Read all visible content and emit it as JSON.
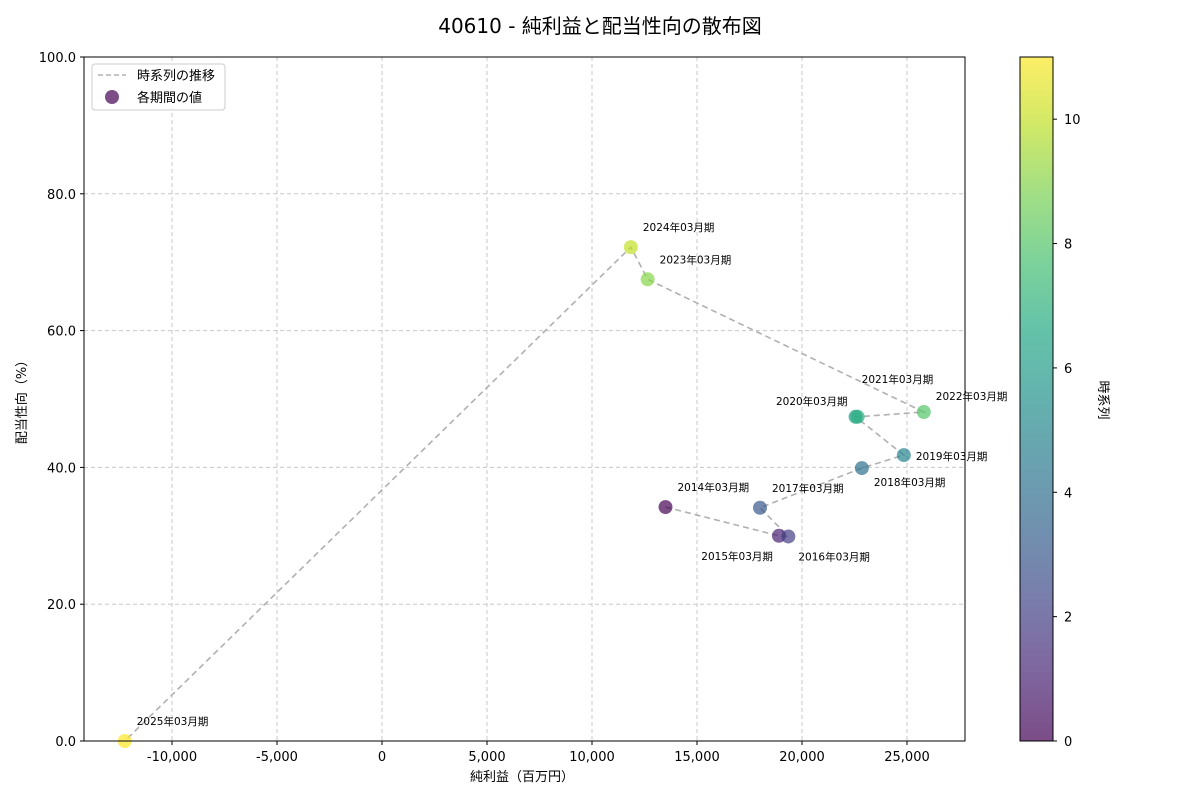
{
  "chart_data": {
    "type": "scatter",
    "title": "40610 - 純利益と配当性向の散布図",
    "xlabel": "純利益（百万円）",
    "ylabel": "配当性向（%）",
    "xlim": [
      -14000,
      28000
    ],
    "ylim": [
      0,
      100
    ],
    "xticks": [
      -10000,
      -5000,
      0,
      5000,
      10000,
      15000,
      20000,
      25000
    ],
    "xtick_labels": [
      "-10,000",
      "-5,000",
      "0",
      "5,000",
      "10,000",
      "15,000",
      "20,000",
      "25,000"
    ],
    "yticks": [
      0,
      20,
      40,
      60,
      80,
      100
    ],
    "ytick_labels": [
      "0.0",
      "20.0",
      "40.0",
      "60.0",
      "80.0",
      "100.0"
    ],
    "grid": true,
    "legend": {
      "placement": "top-left",
      "entries": [
        "時系列の推移",
        "各期間の値"
      ]
    },
    "colorbar": {
      "label": "時系列",
      "range": [
        0,
        11
      ],
      "ticks": [
        0,
        2,
        4,
        6,
        8,
        10
      ],
      "tick_labels": [
        "0",
        "2",
        "4",
        "6",
        "8",
        "10"
      ],
      "colormap": "viridis"
    },
    "line_color": "#b0b0b0",
    "points": [
      {
        "label": "2014年03月期",
        "x": 13500,
        "y": 34.2,
        "t": 0
      },
      {
        "label": "2015年03月期",
        "x": 18900,
        "y": 30.0,
        "t": 1
      },
      {
        "label": "2016年03月期",
        "x": 19350,
        "y": 29.9,
        "t": 2
      },
      {
        "label": "2017年03月期",
        "x": 18000,
        "y": 34.1,
        "t": 3
      },
      {
        "label": "2018年03月期",
        "x": 22850,
        "y": 39.9,
        "t": 4
      },
      {
        "label": "2019年03月期",
        "x": 24850,
        "y": 41.8,
        "t": 5
      },
      {
        "label": "2020年03月期",
        "x": 22550,
        "y": 47.4,
        "t": 6
      },
      {
        "label": "2021年03月期",
        "x": 22650,
        "y": 47.4,
        "t": 7
      },
      {
        "label": "2022年03月期",
        "x": 25800,
        "y": 48.1,
        "t": 8
      },
      {
        "label": "2023年03月期",
        "x": 12650,
        "y": 67.5,
        "t": 9
      },
      {
        "label": "2024年03月期",
        "x": 11850,
        "y": 72.2,
        "t": 10
      },
      {
        "label": "2025年03月期",
        "x": -12250,
        "y": 0.0,
        "t": 11
      }
    ]
  }
}
